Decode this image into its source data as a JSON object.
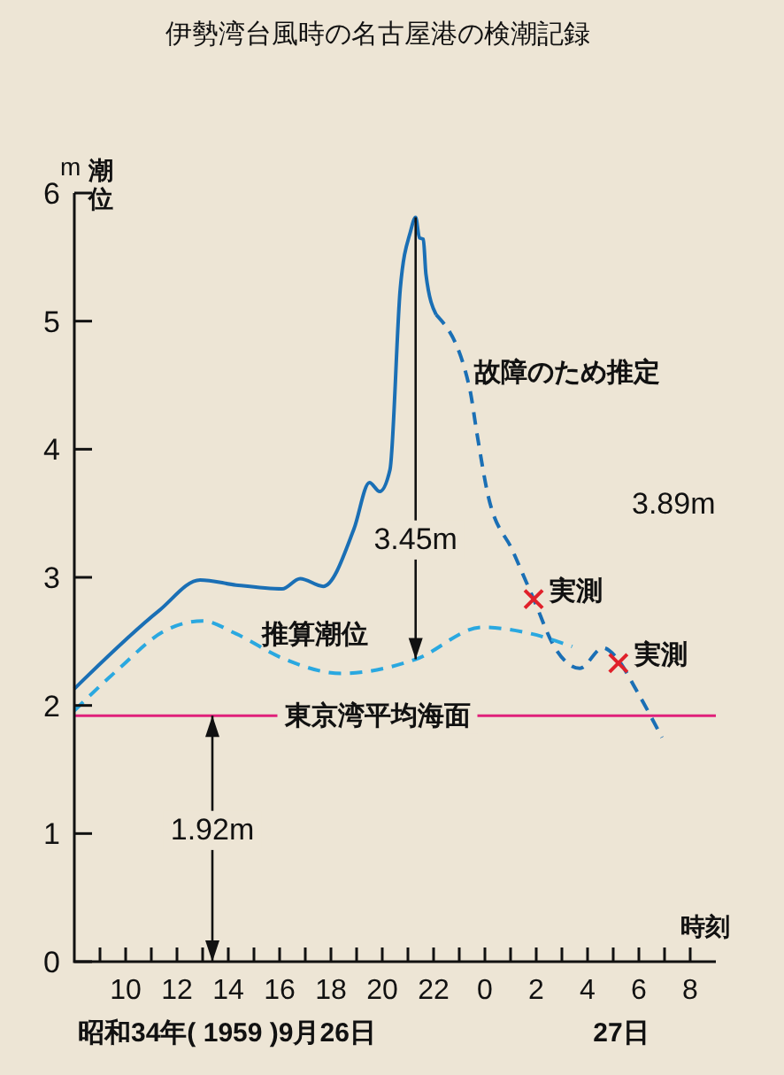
{
  "chart_data": {
    "type": "line",
    "title": "伊勢湾台風時の名古屋港の検潮記録",
    "ylabel": "潮位",
    "xlabel": "時刻",
    "xlim": [
      "1959-09-26T08:00",
      "1959-09-27T09:00"
    ],
    "ylim": [
      0,
      6
    ],
    "xticks": [
      {
        "value": "1959-09-26T09:00",
        "label": null
      },
      {
        "value": "1959-09-26T10:00",
        "label": "10"
      },
      {
        "value": "1959-09-26T11:00",
        "label": null
      },
      {
        "value": "1959-09-26T12:00",
        "label": "12"
      },
      {
        "value": "1959-09-26T13:00",
        "label": null
      },
      {
        "value": "1959-09-26T14:00",
        "label": "14"
      },
      {
        "value": "1959-09-26T15:00",
        "label": null
      },
      {
        "value": "1959-09-26T16:00",
        "label": "16"
      },
      {
        "value": "1959-09-26T17:00",
        "label": null
      },
      {
        "value": "1959-09-26T18:00",
        "label": "18"
      },
      {
        "value": "1959-09-26T19:00",
        "label": null
      },
      {
        "value": "1959-09-26T20:00",
        "label": "20"
      },
      {
        "value": "1959-09-26T21:00",
        "label": null
      },
      {
        "value": "1959-09-26T22:00",
        "label": "22"
      },
      {
        "value": "1959-09-26T23:00",
        "label": null
      },
      {
        "value": "1959-09-27T00:00",
        "label": "0"
      },
      {
        "value": "1959-09-27T01:00",
        "label": null
      },
      {
        "value": "1959-09-27T02:00",
        "label": "2"
      },
      {
        "value": "1959-09-27T03:00",
        "label": null
      },
      {
        "value": "1959-09-27T04:00",
        "label": "4"
      },
      {
        "value": "1959-09-27T05:00",
        "label": null
      },
      {
        "value": "1959-09-27T06:00",
        "label": "6"
      },
      {
        "value": "1959-09-27T07:00",
        "label": null
      },
      {
        "value": "1959-09-27T08:00",
        "label": "8"
      }
    ],
    "yticks": [
      0,
      1,
      2,
      3,
      4,
      5,
      6
    ],
    "grid": false,
    "series": [
      {
        "color": "#1a6fb5",
        "line_style": "solid",
        "x": [
          "1959-09-26T08:00",
          "1959-09-26T11:18",
          "1959-09-26T12:54",
          "1959-09-26T14:18",
          "1959-09-26T16:06",
          "1959-09-26T16:48",
          "1959-09-26T17:42",
          "1959-09-26T18:54",
          "1959-09-26T19:30",
          "1959-09-26T19:54",
          "1959-09-26T20:18",
          "1959-09-26T20:42",
          "1959-09-26T21:06",
          "1959-09-26T21:18",
          "1959-09-26T21:27",
          "1959-09-26T21:36",
          "1959-09-26T21:42",
          "1959-09-26T22:06"
        ],
        "values": [
          2.13,
          2.74,
          2.98,
          2.94,
          2.91,
          2.99,
          2.93,
          3.38,
          3.74,
          3.67,
          3.84,
          5.25,
          5.7,
          5.81,
          5.65,
          5.64,
          5.37,
          5.05
        ]
      },
      {
        "color": "#1a6fb5",
        "line_style": "dashed",
        "x": [
          "1959-09-26T22:06",
          "1959-09-26T23:24",
          "1959-09-26T23:42",
          "1959-09-27T00:06",
          "1959-09-27T01:06",
          "1959-09-27T01:54",
          "1959-09-27T02:42",
          "1959-09-27T03:42",
          "1959-09-27T04:36",
          "1959-09-27T05:06",
          "1959-09-27T05:54",
          "1959-09-27T06:54"
        ],
        "values": [
          5.05,
          4.48,
          4.11,
          3.66,
          3.2,
          2.83,
          2.46,
          2.29,
          2.45,
          2.38,
          2.12,
          1.75
        ]
      },
      {
        "color": "#2aa8e0",
        "line_style": "dashed",
        "x": [
          "1959-09-26T08:00",
          "1959-09-26T09:42",
          "1959-09-26T11:30",
          "1959-09-26T13:00",
          "1959-09-26T14:18",
          "1959-09-26T16:06",
          "1959-09-26T18:24",
          "1959-09-26T21:18",
          "1959-09-26T23:54",
          "1959-09-27T01:48",
          "1959-09-27T03:24"
        ],
        "values": [
          1.96,
          2.28,
          2.58,
          2.66,
          2.56,
          2.37,
          2.25,
          2.36,
          2.61,
          2.56,
          2.46
        ]
      },
      {
        "type": "scatter",
        "color": "#e0202a",
        "marker": "cross",
        "x": [
          "1959-09-27T01:54",
          "1959-09-27T05:12"
        ],
        "values": [
          2.83,
          2.33
        ]
      }
    ],
    "ref_lines": [
      {
        "axis": "y",
        "value": 1.92,
        "label": "東京湾平均海面",
        "color": "#e0207a"
      }
    ],
    "annotations": [
      "3.45m",
      "1.92m",
      "3.89m",
      "故障のため推定",
      "推算潮位",
      {
        "text": "実測",
        "x": "1959-09-27T01:54",
        "y": 2.83
      },
      {
        "text": "実測",
        "x": "1959-09-27T05:12",
        "y": 2.33
      },
      "m",
      "昭和34年( 1959 )9月26日",
      "27日"
    ]
  }
}
